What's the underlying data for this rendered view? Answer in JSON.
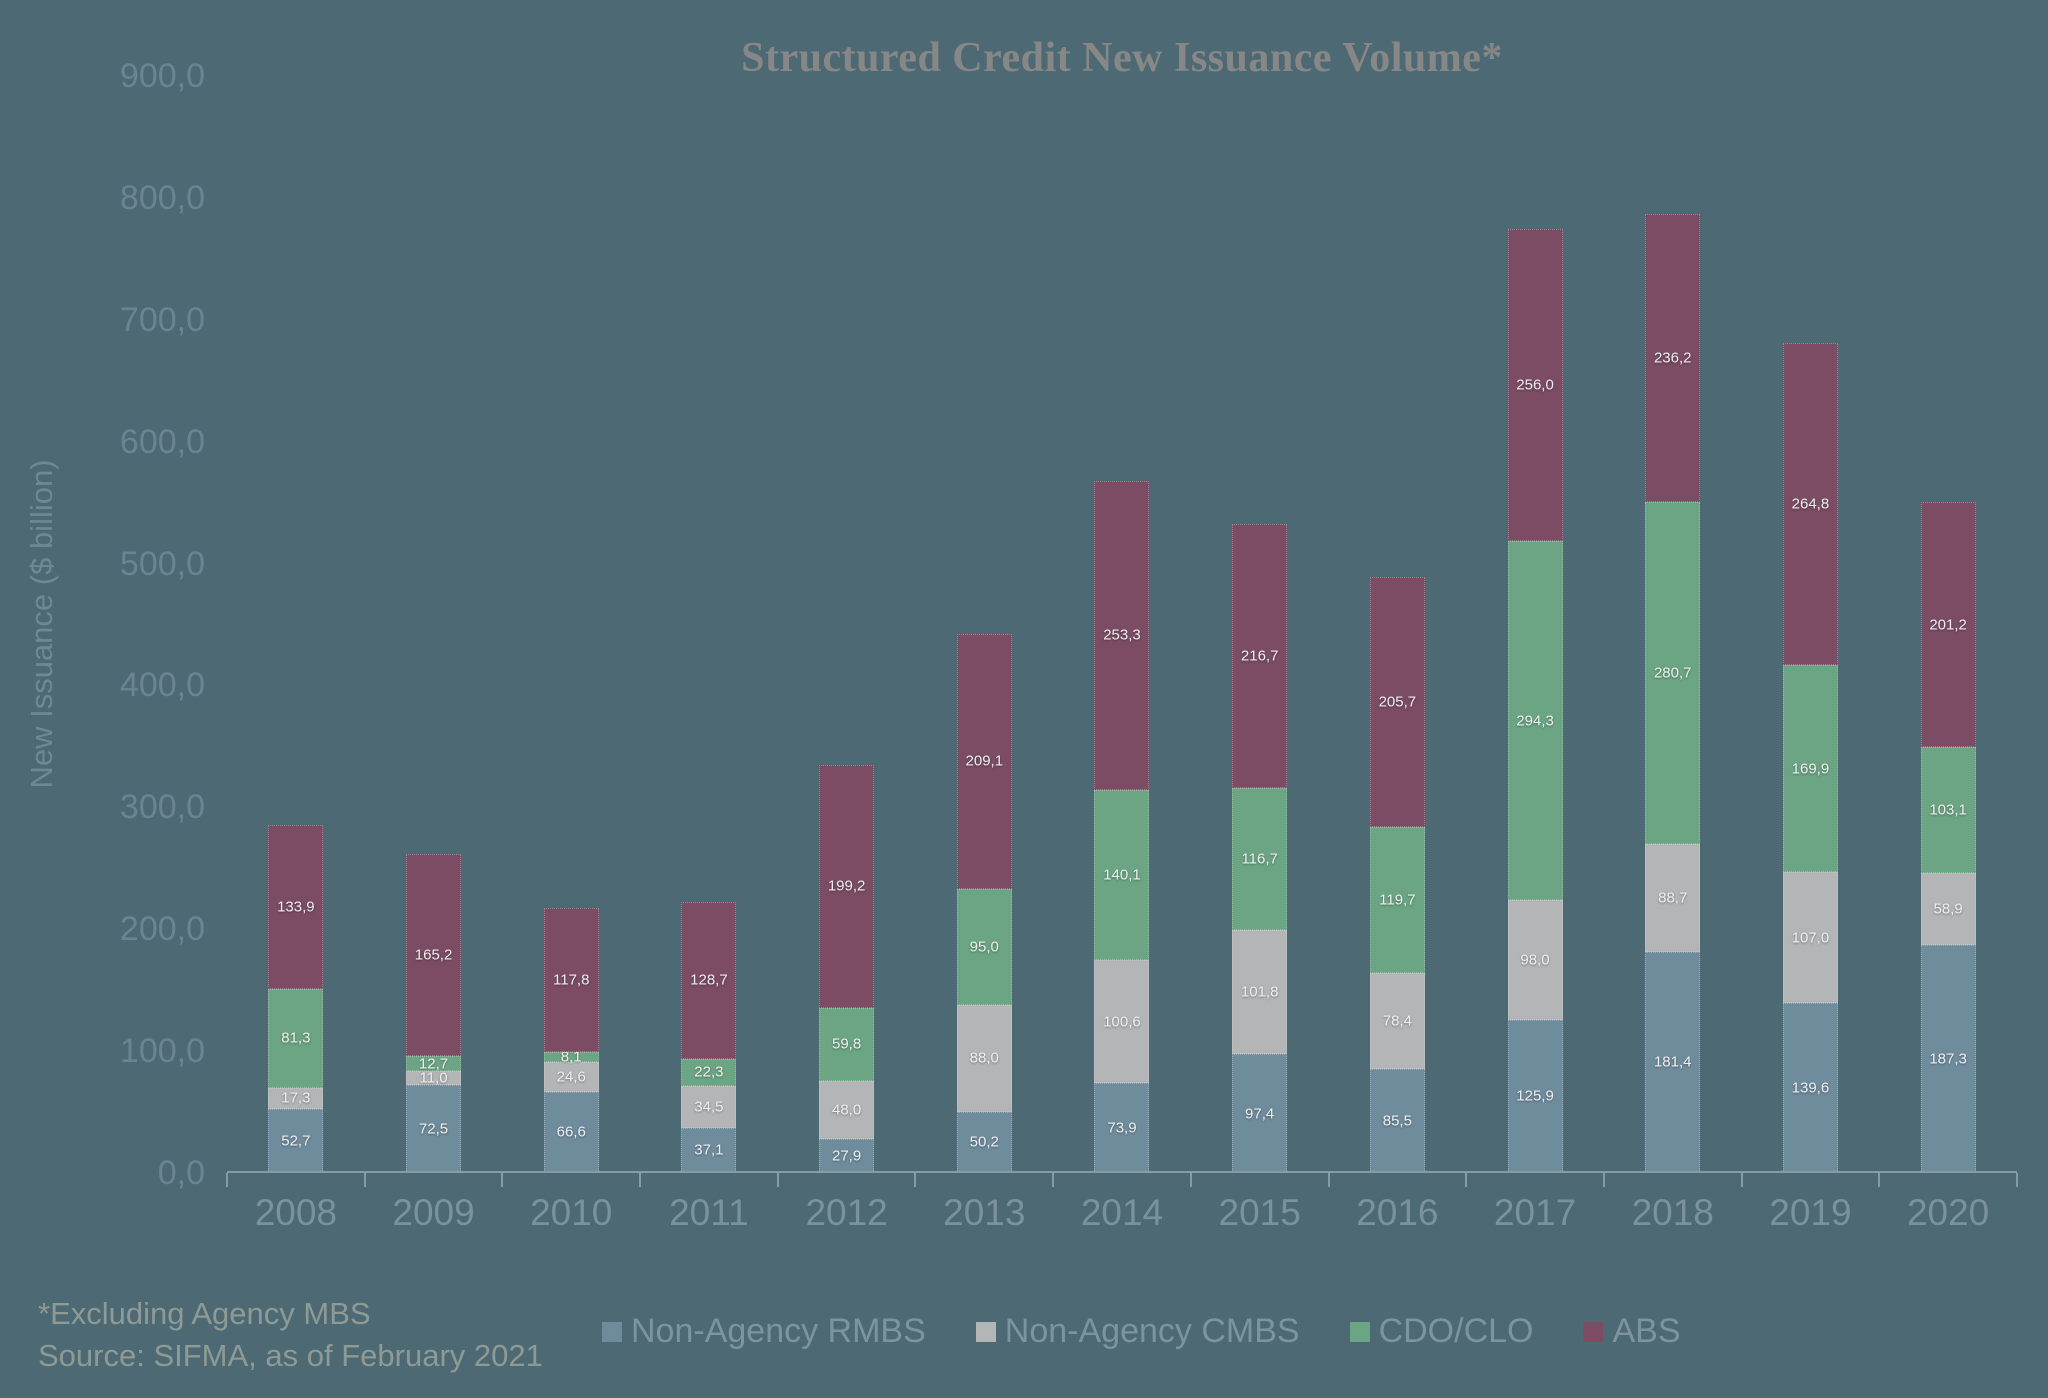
{
  "chart_data": {
    "type": "bar",
    "stacked": true,
    "title": "Structured Credit New Issuance Volume*",
    "xlabel": "",
    "ylabel": "New Issuance ($ billion)",
    "ylim": [
      0,
      900
    ],
    "y_tick_labels": [
      "0,0",
      "100,0",
      "200,0",
      "300,0",
      "400,0",
      "500,0",
      "600,0",
      "700,0",
      "800,0",
      "900,0"
    ],
    "grid": false,
    "legend_position": "bottom",
    "decimal_separator": ",",
    "categories": [
      "2008",
      "2009",
      "2010",
      "2011",
      "2012",
      "2013",
      "2014",
      "2015",
      "2016",
      "2017",
      "2018",
      "2019",
      "2020"
    ],
    "series": [
      {
        "name": "Non-Agency RMBS",
        "color": "#6F8C9D",
        "values": [
          52.7,
          72.5,
          66.6,
          37.1,
          27.9,
          50.2,
          73.9,
          97.4,
          85.5,
          125.9,
          181.4,
          139.6,
          187.3
        ]
      },
      {
        "name": "Non-Agency CMBS",
        "color": "#B3B5B7",
        "values": [
          17.3,
          11.0,
          24.6,
          34.5,
          48.0,
          88.0,
          100.6,
          101.8,
          78.4,
          98.0,
          88.7,
          107.0,
          58.9
        ]
      },
      {
        "name": "CDO/CLO",
        "color": "#6BA584",
        "values": [
          81.3,
          12.7,
          8.1,
          22.3,
          59.8,
          95.0,
          140.1,
          116.7,
          119.7,
          294.3,
          280.7,
          169.9,
          103.1
        ]
      },
      {
        "name": "ABS",
        "color": "#7B4C64",
        "values": [
          133.9,
          165.2,
          117.8,
          128.7,
          199.2,
          209.1,
          253.3,
          216.7,
          205.7,
          256.0,
          236.2,
          264.8,
          201.2
        ]
      }
    ]
  },
  "colors": {
    "background": "#4D6973",
    "title_text": "#878787",
    "axis_text": "#6A8591",
    "year_text": "#7A929D",
    "legend_text": "#7C949E",
    "footnote_text": "#8E9A95",
    "axis_line": "#8A9AA2",
    "data_label_text": "#EFEFEF"
  },
  "footnotes": {
    "line1": "*Excluding Agency MBS",
    "line2": "Source: SIFMA, as of February 2021"
  }
}
